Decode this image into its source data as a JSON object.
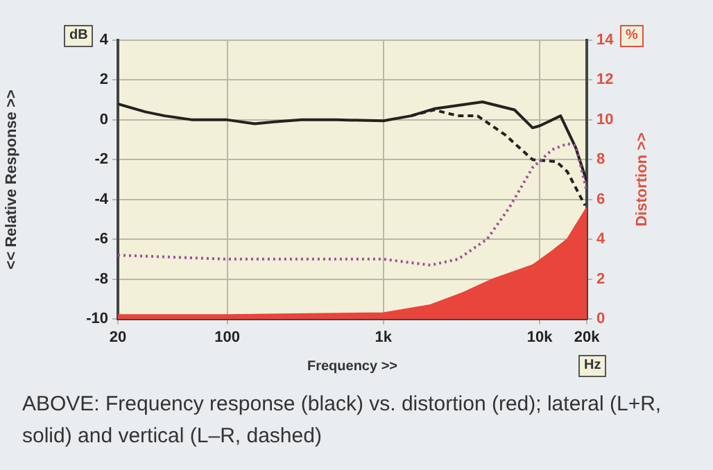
{
  "chart_data": {
    "type": "line",
    "xlabel": "Frequency >>",
    "ylabel": "<< Relative Response >>",
    "y2label": "Distortion >>",
    "annotations": [
      "ABOVE: Frequency response (black) vs. distortion (red); lateral (L+R, solid) and vertical (L–R, dashed)",
      "dB",
      "%",
      "Hz"
    ],
    "log": "x",
    "xlim": [
      20,
      20000
    ],
    "xticks": [
      20,
      100,
      {
        "value": 1000,
        "label": "1k"
      },
      {
        "value": 10000,
        "label": "10k"
      },
      {
        "value": 20000,
        "label": "20k"
      }
    ],
    "ylim": [
      -10,
      4
    ],
    "yticks": [
      -10,
      -8,
      -6,
      -4,
      -2,
      0,
      2,
      4
    ],
    "y2lim": [
      0,
      14
    ],
    "y2ticks": [
      0,
      2,
      4,
      6,
      8,
      10,
      12,
      14
    ],
    "grid": true,
    "legend": false,
    "marker": "none",
    "series": [
      {
        "type": "area",
        "axis": "y2",
        "color": "#e8453c",
        "line_style": "solid",
        "x": [
          20,
          100,
          1000,
          2000,
          3200,
          5000,
          9000,
          12000,
          15000,
          20000
        ],
        "values": [
          0.2,
          0.2,
          0.3,
          0.7,
          1.3,
          2.0,
          2.7,
          3.4,
          4.0,
          5.6
        ]
      },
      {
        "axis": "y2",
        "color": "#a0509a",
        "line_style": "dotted",
        "x": [
          20,
          100,
          1000,
          2000,
          3000,
          4600,
          6400,
          9000,
          12000,
          15000,
          17000,
          20000
        ],
        "values": [
          3.2,
          3.0,
          3.0,
          2.7,
          3.0,
          4.0,
          5.6,
          7.6,
          8.5,
          8.8,
          8.7,
          6.4
        ]
      },
      {
        "color": "#222222",
        "line_style": "dashed",
        "x": [
          1500,
          2100,
          3000,
          4000,
          6000,
          9000,
          12800,
          15000,
          19500
        ],
        "values": [
          0.2,
          0.5,
          0.2,
          0.2,
          -0.75,
          -2.0,
          -2.1,
          -2.6,
          -4.3
        ]
      },
      {
        "color": "#222222",
        "line_style": "solid",
        "x": [
          20,
          30,
          40,
          60,
          100,
          150,
          200,
          300,
          500,
          1000,
          1500,
          2100,
          4300,
          6900,
          9000,
          10000,
          13600,
          17000,
          20000
        ],
        "values": [
          0.8,
          0.4,
          0.2,
          0,
          0,
          -0.2,
          -0.1,
          0,
          0,
          -0.05,
          0.2,
          0.55,
          0.9,
          0.5,
          -0.4,
          -0.3,
          0.2,
          -1.4,
          -3.1
        ]
      }
    ]
  }
}
